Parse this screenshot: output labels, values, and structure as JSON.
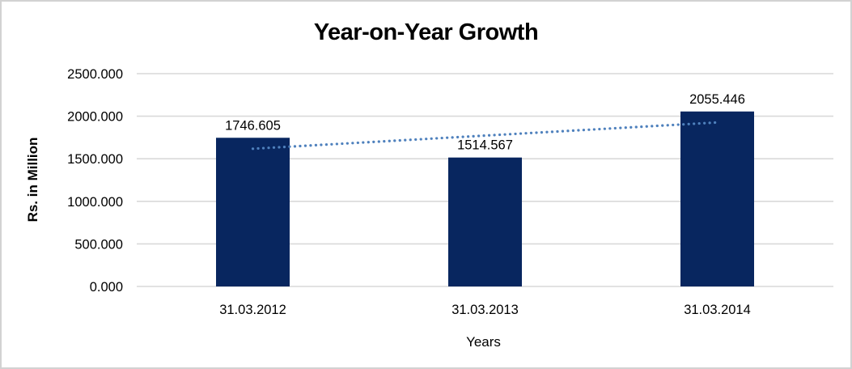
{
  "chart_data": {
    "type": "bar",
    "title": "Year-on-Year Growth",
    "categories": [
      "31.03.2012",
      "31.03.2013",
      "31.03.2014"
    ],
    "values": [
      1746.605,
      1514.567,
      2055.446
    ],
    "data_labels": [
      "1746.605",
      "1514.567",
      "2055.446"
    ],
    "xlabel": "Years",
    "ylabel": "Rs. in Million",
    "ylim": [
      0,
      2500
    ],
    "yticks": [
      0,
      500,
      1000,
      1500,
      2000,
      2500
    ],
    "ytick_labels": [
      "0.000",
      "500.000",
      "1000.000",
      "1500.000",
      "2000.000",
      "2500.000"
    ],
    "grid": true,
    "legend": "none",
    "trendline": {
      "type": "linear",
      "style": "dotted"
    },
    "colors": {
      "bar": "#08265F",
      "trendline": "#4F81BD",
      "gridline": "#D9D9D9",
      "text": "#000000",
      "background": "#FFFFFF",
      "border": "#D2D2D2"
    }
  }
}
